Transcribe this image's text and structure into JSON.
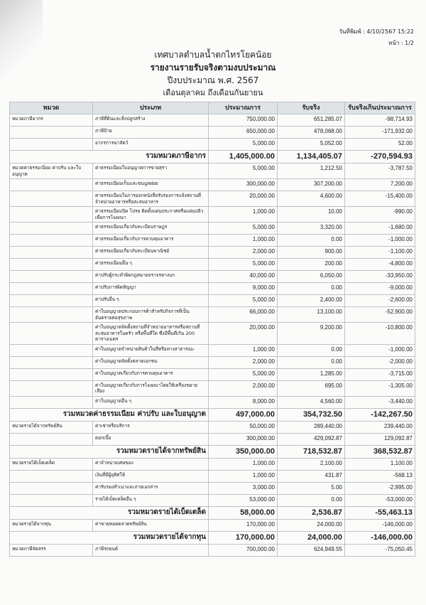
{
  "header": {
    "print_date": "วันที่พิมพ์ : 4/10/2567  15:22",
    "page": "หน้า : 1/2"
  },
  "titles": {
    "org": "เทศบาลตำบลน้ำตกไทรโยคน้อย",
    "report": "รายงานรายรับจริงตามงบประมาณ",
    "fiscal_year": "ปีงบประมาณ พ.ศ. 2567",
    "period": "เดือนตุลาคม ถึงเดือนกันยายน"
  },
  "columns": [
    "หมวด",
    "ประเภท",
    "ประมาณการ",
    "รับจริง",
    "รับจริงเกินประมาณการ"
  ],
  "groups": [
    {
      "category": "หมวดภาษีอากร",
      "items": [
        [
          "ภาษีที่ดินและสิ่งปลูกสร้าง",
          "750,000.00",
          "651,285.07",
          "-98,714.93"
        ],
        [
          "ภาษีป้าย",
          "650,000.00",
          "478,068.00",
          "-171,932.00"
        ],
        [
          "อากรการฆ่าสัตว์",
          "5,000.00",
          "5,052.00",
          "52.00"
        ]
      ],
      "total": [
        "รวมหมวดภาษีอากร",
        "1,405,000.00",
        "1,134,405.07",
        "-270,594.93"
      ]
    },
    {
      "category": "หมวดค่าธรรมเนียม ค่าปรับ และใบอนุญาต",
      "items": [
        [
          "ค่าธรรมเนียมใบอนุญาตการขายสุรา",
          "5,000.00",
          "1,212.50",
          "-3,787.50"
        ],
        [
          "ค่าธรรมเนียมเก็บและขนมูลฝอย",
          "300,000.00",
          "307,200.00",
          "7,200.00"
        ],
        [
          "ค่าธรรมเนียมในการออกหนังสือรับรองการแจ้งสถานที่จำหน่ายอาหารหรือสะสมอาหาร",
          "20,000.00",
          "4,600.00",
          "-15,400.00"
        ],
        [
          "ค่าธรรมเนียมปิด โปรย ติดตั้งแผ่นประกาศหรือแผ่นปลิว เพื่อการโฆษณา",
          "1,000.00",
          "10.00",
          "-990.00"
        ],
        [
          "ค่าธรรมเนียมเกี่ยวกับทะเบียนราษฎร",
          "5,000.00",
          "3,320.00",
          "-1,680.00"
        ],
        [
          "ค่าธรรมเนียมเกี่ยวกับการควบคุมอาคาร",
          "1,000.00",
          "0.00",
          "-1,000.00"
        ],
        [
          "ค่าธรรมเนียมเกี่ยวกับทะเบียนพาณิชย์",
          "2,000.00",
          "900.00",
          "-1,100.00"
        ],
        [
          "ค่าธรรมเนียมอื่น ๆ",
          "5,000.00",
          "200.00",
          "-4,800.00"
        ],
        [
          "ค่าปรับผู้กระทำผิดกฎหมายจราจรทางบก",
          "40,000.00",
          "6,050.00",
          "-33,950.00"
        ],
        [
          "ค่าปรับการผิดสัญญา",
          "9,000.00",
          "0.00",
          "-9,000.00"
        ],
        [
          "ค่าปรับอื่น ๆ",
          "5,000.00",
          "2,400.00",
          "-2,600.00"
        ],
        [
          "ค่าใบอนุญาตประกอบการค้าสำหรับกิจการที่เป็นอันตรายต่อสุขภาพ",
          "66,000.00",
          "13,100.00",
          "-52,900.00"
        ],
        [
          "ค่าใบอนุญาตจัดตั้งสถานที่จำหน่ายอาหารหรือสถานที่สะสมอาหารในครัว หรือพื้นที่ใด ซึ่งมีพื้นที่เกิน 200 ตารางเมตร",
          "20,000.00",
          "9,200.00",
          "-10,800.00"
        ],
        [
          "ค่าใบอนุญาตจำหน่ายสินค้าในที่หรือทางสาธารณะ",
          "1,000.00",
          "0.00",
          "-1,000.00"
        ],
        [
          "ค่าใบอนุญาตจัดตั้งตลาดเอกชน",
          "2,000.00",
          "0.00",
          "-2,000.00"
        ],
        [
          "ค่าใบอนุญาตเกี่ยวกับการควบคุมอาคาร",
          "5,000.00",
          "1,285.00",
          "-3,715.00"
        ],
        [
          "ค่าใบอนุญาตเกี่ยวกับการโฆษณาโดยใช้เครื่องขยายเสียง",
          "2,000.00",
          "695.00",
          "-1,305.00"
        ],
        [
          "ค่าใบอนุญาตอื่น ๆ",
          "8,000.00",
          "4,560.00",
          "-3,440.00"
        ]
      ],
      "total": [
        "รวมหมวดค่าธรรมเนียม ค่าปรับ และใบอนุญาต",
        "497,000.00",
        "354,732.50",
        "-142,267.50"
      ]
    },
    {
      "category": "หมวดรายได้จากทรัพย์สิน",
      "items": [
        [
          "ค่าเช่าหรือบริการ",
          "50,000.00",
          "289,440.00",
          "239,440.00"
        ],
        [
          "ดอกเบี้ย",
          "300,000.00",
          "429,092.87",
          "129,092.87"
        ]
      ],
      "total": [
        "รวมหมวดรายได้จากทรัพย์สิน",
        "350,000.00",
        "718,532.87",
        "368,532.87"
      ]
    },
    {
      "category": "หมวดรายได้เบ็ดเตล็ด",
      "items": [
        [
          "ค่าจำหน่ายเศษของ",
          "1,000.00",
          "2,100.00",
          "1,100.00"
        ],
        [
          "เงินที่มีผู้อุทิศให้",
          "1,000.00",
          "431.87",
          "-568.13"
        ],
        [
          "ค่ารับรองสำเนาและถ่ายเอกสาร",
          "3,000.00",
          "5.00",
          "-2,995.00"
        ],
        [
          "รายได้เบ็ดเตล็ดอื่น ๆ",
          "53,000.00",
          "0.00",
          "-53,000.00"
        ]
      ],
      "total": [
        "รวมหมวดรายได้เบ็ดเตล็ด",
        "58,000.00",
        "2,536.87",
        "-55,463.13"
      ]
    },
    {
      "category": "หมวดรายได้จากทุน",
      "items": [
        [
          "ค่าขายทอดตลาดทรัพย์สิน",
          "170,000.00",
          "24,000.00",
          "-146,000.00"
        ]
      ],
      "total": [
        "รวมหมวดรายได้จากทุน",
        "170,000.00",
        "24,000.00",
        "-146,000.00"
      ]
    },
    {
      "category": "หมวดภาษีจัดสรร",
      "items": [
        [
          "ภาษีรถยนต์",
          "700,000.00",
          "624,949.55",
          "-75,050.45"
        ]
      ]
    }
  ]
}
